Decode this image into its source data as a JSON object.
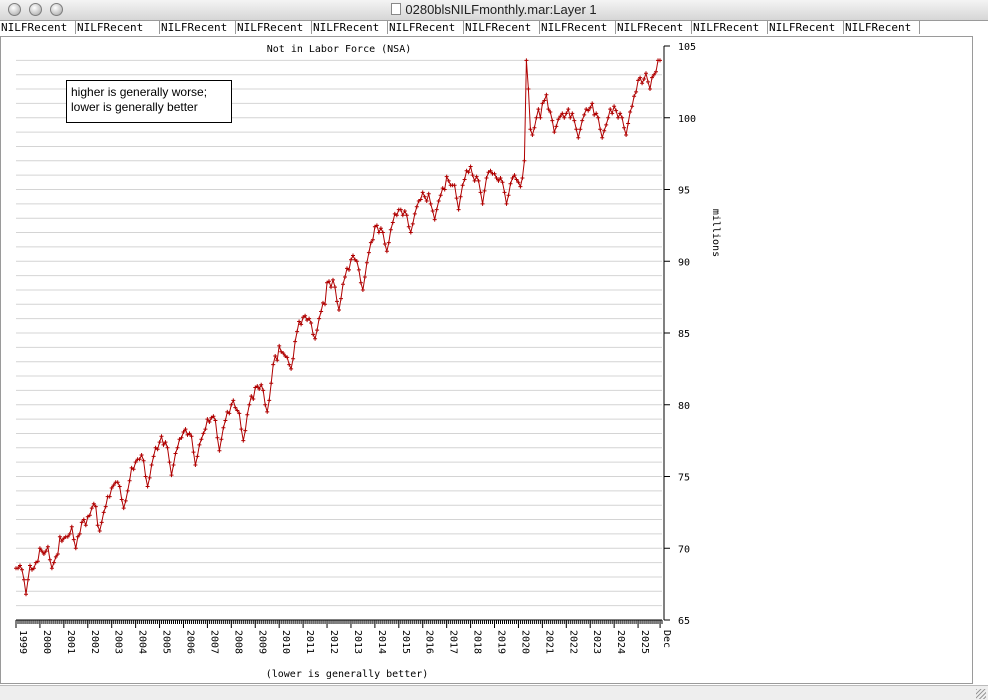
{
  "window": {
    "title": "0280blsNILFmonthly.mar:Layer 1"
  },
  "tabs": [
    "NILFRecent",
    "NILFRecent",
    "NILFRecent",
    "NILFRecent",
    "NILFRecent",
    "NILFRecent",
    "NILFRecent",
    "NILFRecent",
    "NILFRecent",
    "NILFRecent",
    "NILFRecent",
    "NILFRecent"
  ],
  "note_lines": [
    "higher is generally worse;",
    "lower is generally better"
  ],
  "chart_data": {
    "type": "line",
    "title": "Not in Labor Force (NSA)",
    "xlabel": "(lower is generally better)",
    "ylabel": "millions",
    "ylim": [
      65,
      105
    ],
    "yticks": [
      65,
      70,
      75,
      80,
      85,
      90,
      95,
      100,
      105
    ],
    "xlim": [
      1999,
      2026
    ],
    "xticks": [
      {
        "label": "1999",
        "x": 1999
      },
      {
        "label": "2000",
        "x": 2000
      },
      {
        "label": "2001",
        "x": 2001
      },
      {
        "label": "2002",
        "x": 2002
      },
      {
        "label": "2003",
        "x": 2003
      },
      {
        "label": "2004",
        "x": 2004
      },
      {
        "label": "2005",
        "x": 2005
      },
      {
        "label": "2006",
        "x": 2006
      },
      {
        "label": "2007",
        "x": 2007
      },
      {
        "label": "2008",
        "x": 2008
      },
      {
        "label": "2009",
        "x": 2009
      },
      {
        "label": "2010",
        "x": 2010
      },
      {
        "label": "2011",
        "x": 2011
      },
      {
        "label": "2012",
        "x": 2012
      },
      {
        "label": "2013",
        "x": 2013
      },
      {
        "label": "2014",
        "x": 2014
      },
      {
        "label": "2015",
        "x": 2015
      },
      {
        "label": "2016",
        "x": 2016
      },
      {
        "label": "2017",
        "x": 2017
      },
      {
        "label": "2018",
        "x": 2018
      },
      {
        "label": "2019",
        "x": 2019
      },
      {
        "label": "2020",
        "x": 2020
      },
      {
        "label": "2021",
        "x": 2021
      },
      {
        "label": "2022",
        "x": 2022
      },
      {
        "label": "2023",
        "x": 2023
      },
      {
        "label": "2024",
        "x": 2024
      },
      {
        "label": "2025",
        "x": 2025
      },
      {
        "label": "Dec",
        "x": 2025.92
      }
    ],
    "grid": true,
    "line_color": "#b00000",
    "series": [
      {
        "x_start": 1999,
        "x_step": 0.0833333,
        "values": [
          68.6,
          68.6,
          68.8,
          68.5,
          67.8,
          66.8,
          67.8,
          68.8,
          68.5,
          68.6,
          69.0,
          69.1,
          70.0,
          69.8,
          69.6,
          69.8,
          70.1,
          69.2,
          68.6,
          69.0,
          69.4,
          69.6,
          70.8,
          70.5,
          70.7,
          70.8,
          70.8,
          71.0,
          71.5,
          70.6,
          70.0,
          70.8,
          71.0,
          71.8,
          72.0,
          71.6,
          72.2,
          72.3,
          72.8,
          73.1,
          72.9,
          71.6,
          71.2,
          71.8,
          72.5,
          72.9,
          73.6,
          73.6,
          74.2,
          74.4,
          74.6,
          74.6,
          74.3,
          73.4,
          72.8,
          73.3,
          74.0,
          74.7,
          75.6,
          75.5,
          76.0,
          76.2,
          76.2,
          76.5,
          76.1,
          75.0,
          74.3,
          74.9,
          75.8,
          76.4,
          77.0,
          76.9,
          77.4,
          77.8,
          77.2,
          77.4,
          77.0,
          76.0,
          75.1,
          75.8,
          76.6,
          77.0,
          77.6,
          77.7,
          78.1,
          78.3,
          77.9,
          78.0,
          77.8,
          76.7,
          75.8,
          76.4,
          77.2,
          77.6,
          78.0,
          78.3,
          79.0,
          78.8,
          79.1,
          79.2,
          78.9,
          77.7,
          76.8,
          77.6,
          78.4,
          78.9,
          79.5,
          79.4,
          80.0,
          80.3,
          79.8,
          79.6,
          79.4,
          78.3,
          77.5,
          78.2,
          79.3,
          80.0,
          80.6,
          80.4,
          81.2,
          81.3,
          81.1,
          81.4,
          81.0,
          80.0,
          79.5,
          80.3,
          81.5,
          82.8,
          83.4,
          83.1,
          84.1,
          83.7,
          83.6,
          83.4,
          83.3,
          82.8,
          82.5,
          83.2,
          84.4,
          85.1,
          85.8,
          85.6,
          86.1,
          86.2,
          85.9,
          86.0,
          85.7,
          84.9,
          84.6,
          85.2,
          86.0,
          86.5,
          87.1,
          87.0,
          88.5,
          88.6,
          88.2,
          88.7,
          88.2,
          87.2,
          86.6,
          87.4,
          88.4,
          88.9,
          89.5,
          89.4,
          90.1,
          90.4,
          90.1,
          90.0,
          89.4,
          88.5,
          88.0,
          88.9,
          89.9,
          90.6,
          91.3,
          91.5,
          92.4,
          92.5,
          92.0,
          92.3,
          92.0,
          91.2,
          90.7,
          91.3,
          92.2,
          92.7,
          93.3,
          93.2,
          93.6,
          93.6,
          93.2,
          93.5,
          93.2,
          92.4,
          92.0,
          92.6,
          93.3,
          93.8,
          94.2,
          94.3,
          94.8,
          94.5,
          94.2,
          94.7,
          94.0,
          93.5,
          92.9,
          93.6,
          94.2,
          94.6,
          95.1,
          95.0,
          95.9,
          95.6,
          95.3,
          95.3,
          95.3,
          94.4,
          93.6,
          94.5,
          95.3,
          95.7,
          96.3,
          96.2,
          96.6,
          96.0,
          95.6,
          95.9,
          95.6,
          94.8,
          94.0,
          94.9,
          95.8,
          96.2,
          96.3,
          96.1,
          96.1,
          95.8,
          95.6,
          95.8,
          95.5,
          94.8,
          94.0,
          94.6,
          95.4,
          95.8,
          96.0,
          95.7,
          95.5,
          95.2,
          95.8,
          97.0,
          104.0,
          102.0,
          99.2,
          98.8,
          99.3,
          100.0,
          100.6,
          100.0,
          101.0,
          101.2,
          101.6,
          100.6,
          100.4,
          99.8,
          99.0,
          99.4,
          99.9,
          100.1,
          100.3,
          100.0,
          100.3,
          100.6,
          100.0,
          100.3,
          99.8,
          99.2,
          98.6,
          99.2,
          99.8,
          100.2,
          100.6,
          100.5,
          100.7,
          101.0,
          100.2,
          100.3,
          100.0,
          99.2,
          98.6,
          99.1,
          99.5,
          100.0,
          100.6,
          100.3,
          100.8,
          100.5,
          100.0,
          100.3,
          100.0,
          99.3,
          98.8,
          99.6,
          100.4,
          100.8,
          101.5,
          101.8,
          102.6,
          102.8,
          102.4,
          102.7,
          103.1,
          102.5,
          102.0,
          102.8,
          103.0,
          103.2,
          104.0,
          104.0
        ]
      }
    ]
  }
}
